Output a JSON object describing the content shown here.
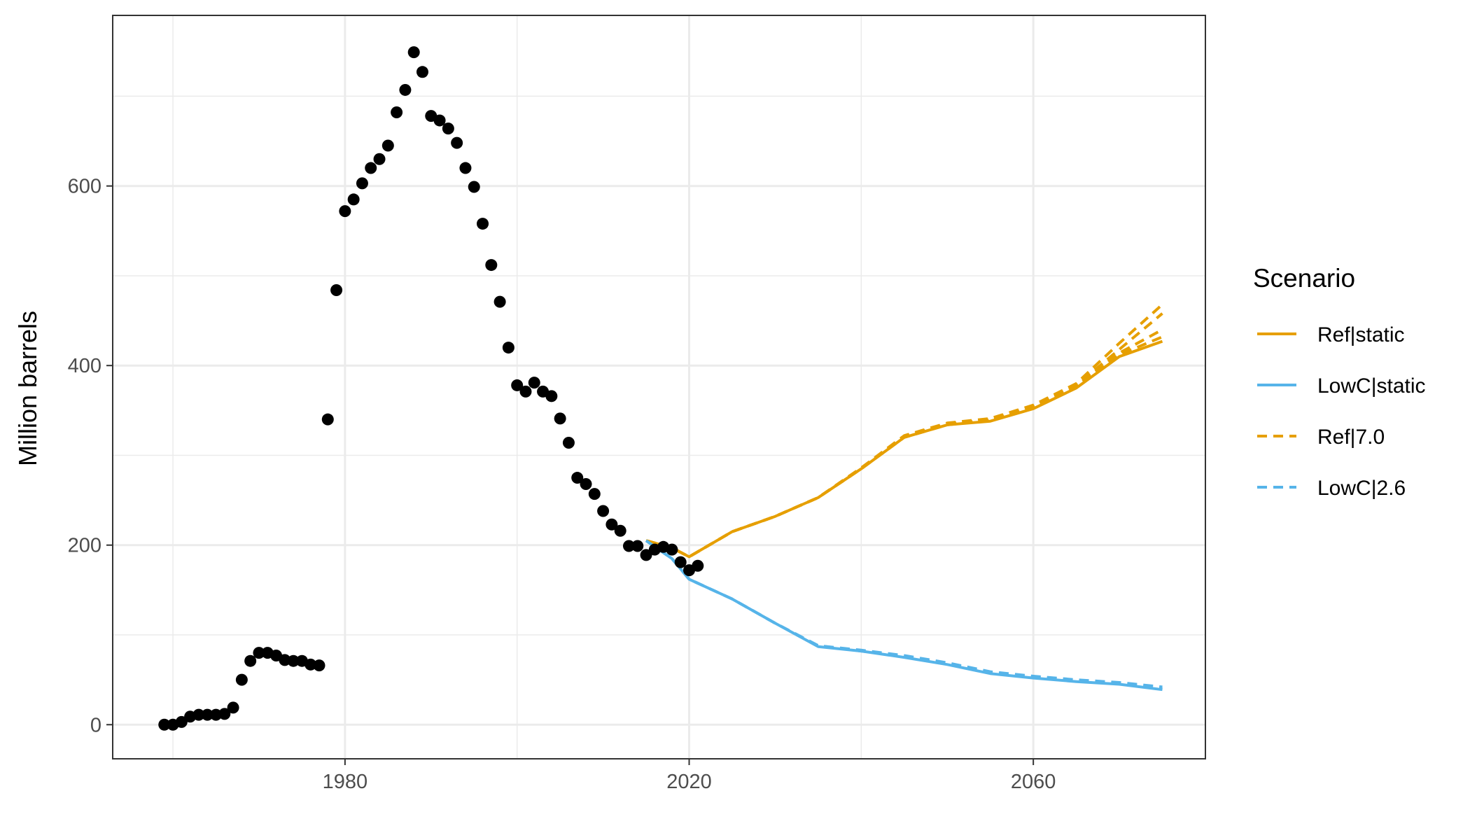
{
  "chart_data": {
    "type": "line",
    "title": "",
    "xlabel": "",
    "ylabel": "Million barrels",
    "xlim": [
      1953,
      2080
    ],
    "ylim": [
      -38,
      790
    ],
    "x_ticks": [
      1980,
      2020,
      2060
    ],
    "y_ticks": [
      0,
      200,
      400,
      600
    ],
    "grid": true,
    "legend": {
      "title": "Scenario",
      "position": "right",
      "entries": [
        {
          "label": "Ref|static",
          "color": "#E69F00",
          "dash": "solid"
        },
        {
          "label": "LowC|static",
          "color": "#56B4E9",
          "dash": "solid"
        },
        {
          "label": "Ref|7.0",
          "color": "#E69F00",
          "dash": "dashed"
        },
        {
          "label": "LowC|2.6",
          "color": "#56B4E9",
          "dash": "dashed"
        }
      ]
    },
    "historical": {
      "color": "#000000",
      "points": [
        [
          1959,
          0
        ],
        [
          1960,
          0
        ],
        [
          1961,
          3
        ],
        [
          1962,
          9
        ],
        [
          1963,
          11
        ],
        [
          1964,
          11
        ],
        [
          1965,
          11
        ],
        [
          1966,
          12
        ],
        [
          1967,
          19
        ],
        [
          1968,
          50
        ],
        [
          1969,
          71
        ],
        [
          1970,
          80
        ],
        [
          1971,
          80
        ],
        [
          1972,
          77
        ],
        [
          1973,
          72
        ],
        [
          1974,
          71
        ],
        [
          1975,
          71
        ],
        [
          1976,
          67
        ],
        [
          1977,
          66
        ],
        [
          1978,
          340
        ],
        [
          1979,
          484
        ],
        [
          1980,
          572
        ],
        [
          1981,
          585
        ],
        [
          1982,
          603
        ],
        [
          1983,
          620
        ],
        [
          1984,
          630
        ],
        [
          1985,
          645
        ],
        [
          1986,
          682
        ],
        [
          1987,
          707
        ],
        [
          1988,
          749
        ],
        [
          1989,
          727
        ],
        [
          1990,
          678
        ],
        [
          1991,
          673
        ],
        [
          1992,
          664
        ],
        [
          1993,
          648
        ],
        [
          1994,
          620
        ],
        [
          1995,
          599
        ],
        [
          1996,
          558
        ],
        [
          1997,
          512
        ],
        [
          1998,
          471
        ],
        [
          1999,
          420
        ],
        [
          2000,
          378
        ],
        [
          2001,
          371
        ],
        [
          2002,
          381
        ],
        [
          2003,
          371
        ],
        [
          2004,
          366
        ],
        [
          2005,
          341
        ],
        [
          2006,
          314
        ],
        [
          2007,
          275
        ],
        [
          2008,
          268
        ],
        [
          2009,
          257
        ],
        [
          2010,
          238
        ],
        [
          2011,
          223
        ],
        [
          2012,
          216
        ],
        [
          2013,
          199
        ],
        [
          2014,
          199
        ],
        [
          2015,
          189
        ],
        [
          2016,
          195
        ],
        [
          2017,
          198
        ],
        [
          2018,
          195
        ],
        [
          2019,
          181
        ],
        [
          2020,
          172
        ],
        [
          2021,
          177
        ]
      ]
    },
    "series": [
      {
        "name": "Ref|static",
        "color": "#E69F00",
        "dash": "solid",
        "points": [
          [
            2015,
            205
          ],
          [
            2018,
            197
          ],
          [
            2020,
            187
          ],
          [
            2025,
            215
          ],
          [
            2030,
            232
          ],
          [
            2035,
            253
          ],
          [
            2040,
            285
          ],
          [
            2045,
            320
          ],
          [
            2050,
            334
          ],
          [
            2055,
            338
          ],
          [
            2060,
            352
          ],
          [
            2065,
            375
          ],
          [
            2070,
            410
          ],
          [
            2075,
            427
          ]
        ]
      },
      {
        "name": "LowC|static",
        "color": "#56B4E9",
        "dash": "solid",
        "points": [
          [
            2015,
            205
          ],
          [
            2018,
            185
          ],
          [
            2020,
            162
          ],
          [
            2025,
            140
          ],
          [
            2030,
            113
          ],
          [
            2035,
            87
          ],
          [
            2040,
            82
          ],
          [
            2045,
            75
          ],
          [
            2050,
            67
          ],
          [
            2055,
            57
          ],
          [
            2060,
            52
          ],
          [
            2065,
            48
          ],
          [
            2070,
            45
          ],
          [
            2075,
            39
          ]
        ]
      },
      {
        "name": "Ref|7.0",
        "color": "#E69F00",
        "dash": "dashed",
        "points": [
          [
            2015,
            205
          ],
          [
            2018,
            197
          ],
          [
            2020,
            187
          ],
          [
            2025,
            215
          ],
          [
            2030,
            232
          ],
          [
            2035,
            253
          ],
          [
            2040,
            286
          ],
          [
            2045,
            322
          ],
          [
            2050,
            336
          ],
          [
            2055,
            341
          ],
          [
            2060,
            356
          ],
          [
            2065,
            380
          ],
          [
            2070,
            425
          ],
          [
            2075,
            468
          ]
        ]
      },
      {
        "name": "Ref|7.0",
        "color": "#E69F00",
        "dash": "dashed",
        "points": [
          [
            2015,
            205
          ],
          [
            2018,
            197
          ],
          [
            2020,
            187
          ],
          [
            2025,
            215
          ],
          [
            2030,
            232
          ],
          [
            2035,
            253
          ],
          [
            2040,
            286
          ],
          [
            2045,
            321
          ],
          [
            2050,
            335
          ],
          [
            2055,
            340
          ],
          [
            2060,
            355
          ],
          [
            2065,
            378
          ],
          [
            2070,
            418
          ],
          [
            2075,
            458
          ]
        ]
      },
      {
        "name": "Ref|7.0",
        "color": "#E69F00",
        "dash": "dashed",
        "points": [
          [
            2015,
            205
          ],
          [
            2018,
            197
          ],
          [
            2020,
            187
          ],
          [
            2025,
            215
          ],
          [
            2030,
            232
          ],
          [
            2035,
            253
          ],
          [
            2040,
            285
          ],
          [
            2045,
            321
          ],
          [
            2050,
            335
          ],
          [
            2055,
            339
          ],
          [
            2060,
            354
          ],
          [
            2065,
            377
          ],
          [
            2070,
            414
          ],
          [
            2075,
            440
          ]
        ]
      },
      {
        "name": "Ref|7.0",
        "color": "#E69F00",
        "dash": "dashed",
        "points": [
          [
            2015,
            205
          ],
          [
            2018,
            197
          ],
          [
            2020,
            187
          ],
          [
            2025,
            215
          ],
          [
            2030,
            232
          ],
          [
            2035,
            253
          ],
          [
            2040,
            285
          ],
          [
            2045,
            320
          ],
          [
            2050,
            334
          ],
          [
            2055,
            339
          ],
          [
            2060,
            353
          ],
          [
            2065,
            376
          ],
          [
            2070,
            412
          ],
          [
            2075,
            432
          ]
        ]
      },
      {
        "name": "LowC|2.6",
        "color": "#56B4E9",
        "dash": "dashed",
        "points": [
          [
            2015,
            205
          ],
          [
            2018,
            185
          ],
          [
            2020,
            162
          ],
          [
            2025,
            140
          ],
          [
            2030,
            113
          ],
          [
            2035,
            88
          ],
          [
            2040,
            83
          ],
          [
            2045,
            77
          ],
          [
            2050,
            69
          ],
          [
            2055,
            59
          ],
          [
            2060,
            54
          ],
          [
            2065,
            50
          ],
          [
            2070,
            47
          ],
          [
            2075,
            42
          ]
        ]
      },
      {
        "name": "LowC|2.6",
        "color": "#56B4E9",
        "dash": "dashed",
        "points": [
          [
            2015,
            205
          ],
          [
            2018,
            185
          ],
          [
            2020,
            162
          ],
          [
            2025,
            140
          ],
          [
            2030,
            113
          ],
          [
            2035,
            88
          ],
          [
            2040,
            82
          ],
          [
            2045,
            76
          ],
          [
            2050,
            68
          ],
          [
            2055,
            58
          ],
          [
            2060,
            53
          ],
          [
            2065,
            49
          ],
          [
            2070,
            46
          ],
          [
            2075,
            40
          ]
        ]
      }
    ]
  }
}
